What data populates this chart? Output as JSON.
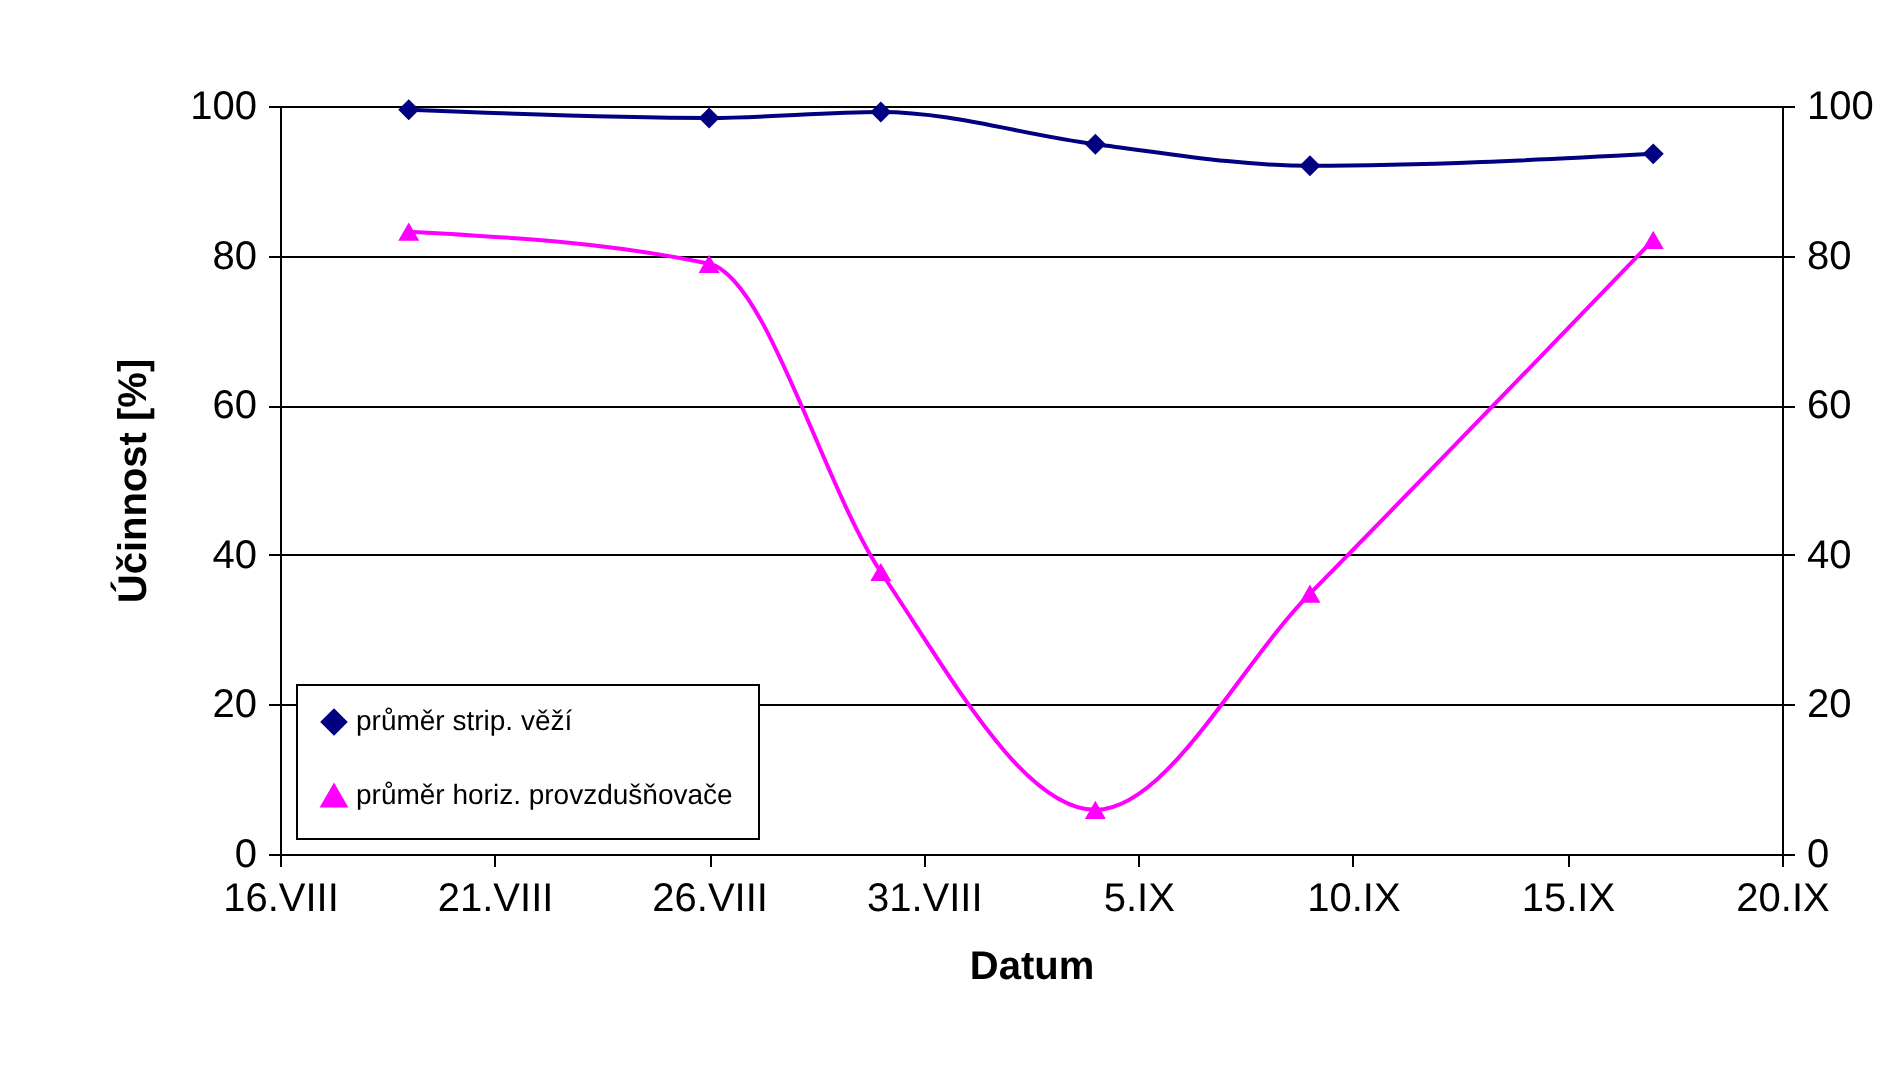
{
  "chart_data": {
    "type": "line",
    "xlabel": "Datum",
    "ylabel": "Účinnost [%]",
    "x": [
      "--08-19",
      "--08-26",
      "--08-30",
      "--09-04",
      "--09-09",
      "--09-17"
    ],
    "series": [
      {
        "name": "průměr strip. věží",
        "color": "#000080",
        "marker": "diamond",
        "values": [
          99.5,
          98.4,
          99.2,
          94.9,
          92,
          93.6
        ]
      },
      {
        "name": "průměr horiz. provzdušňovače",
        "color": "#ff00ff",
        "marker": "triangle",
        "values": [
          83.2,
          78.9,
          37.7,
          5.9,
          34.8,
          82.1
        ]
      }
    ],
    "xlim": [
      "--08-16",
      "--09-20"
    ],
    "xticks": [
      {
        "value": "--08-16",
        "label": "16.VIII"
      },
      {
        "value": "--08-21",
        "label": "21.VIII"
      },
      {
        "value": "--08-26",
        "label": "26.VIII"
      },
      {
        "value": "--08-31",
        "label": "31.VIII"
      },
      {
        "value": "--09-05",
        "label": "5.IX"
      },
      {
        "value": "--09-10",
        "label": "10.IX"
      },
      {
        "value": "--09-15",
        "label": "15.IX"
      },
      {
        "value": "--09-20",
        "label": "20.IX"
      }
    ],
    "ylim": [
      0,
      100
    ],
    "yticks": [
      0,
      20,
      40,
      60,
      80,
      100
    ],
    "y2lim": [
      0,
      100
    ],
    "y2ticks": [
      0,
      20,
      40,
      60,
      80,
      100
    ],
    "grid": "y",
    "legend": "bottom left",
    "line_style": "solid"
  }
}
